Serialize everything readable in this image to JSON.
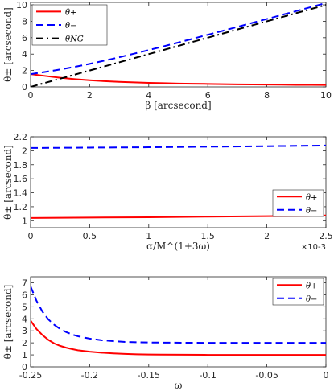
{
  "chart_data": [
    {
      "type": "line",
      "xlabel": "β [arcsecond]",
      "ylabel": "θ± [arcsecond]",
      "xlim": [
        0,
        10
      ],
      "ylim": [
        0,
        10.3
      ],
      "xticks": [
        "0",
        "2",
        "4",
        "6",
        "8",
        "10"
      ],
      "yticks": [
        "0",
        "2",
        "4",
        "6",
        "8",
        "10"
      ],
      "xtick_values": [
        0,
        2,
        4,
        6,
        8,
        10
      ],
      "ytick_values": [
        0,
        2,
        4,
        6,
        8,
        10
      ],
      "legend_position": "top-left",
      "series": [
        {
          "name": "θ+",
          "color": "#ff0000",
          "dash": "solid",
          "x": [
            0,
            0.5,
            1,
            1.5,
            2,
            2.5,
            3,
            3.5,
            4,
            4.5,
            5,
            5.5,
            6,
            6.5,
            7,
            7.5,
            8,
            8.5,
            9,
            9.5,
            10
          ],
          "y": [
            1.56,
            1.33,
            1.12,
            0.95,
            0.81,
            0.7,
            0.61,
            0.55,
            0.49,
            0.45,
            0.41,
            0.38,
            0.36,
            0.33,
            0.31,
            0.3,
            0.28,
            0.27,
            0.25,
            0.24,
            0.23
          ]
        },
        {
          "name": "θ−",
          "color": "#0000ff",
          "dash": "dashed",
          "x": [
            0,
            0.5,
            1,
            1.5,
            2,
            2.5,
            3,
            3.5,
            4,
            4.5,
            5,
            5.5,
            6,
            6.5,
            7,
            7.5,
            8,
            8.5,
            9,
            9.5,
            10
          ],
          "y": [
            1.56,
            1.83,
            2.12,
            2.45,
            2.81,
            3.2,
            3.61,
            4.05,
            4.49,
            4.95,
            5.41,
            5.88,
            6.36,
            6.83,
            7.31,
            7.8,
            8.28,
            8.77,
            9.25,
            9.74,
            10.23
          ]
        },
        {
          "name": "θNG",
          "color": "#000000",
          "dash": "dashdot",
          "x": [
            0,
            1,
            2,
            3,
            4,
            5,
            6,
            7,
            8,
            9,
            10
          ],
          "y": [
            0,
            1.0,
            2.0,
            3.0,
            4.0,
            5.0,
            6.0,
            7.0,
            8.0,
            9.0,
            10.0
          ]
        }
      ]
    },
    {
      "type": "line",
      "xlabel": "α/M^(1+3ω)",
      "ylabel": "θ± [arcsecond]",
      "xlim": [
        0,
        2.5
      ],
      "ylim": [
        0.9,
        2.2
      ],
      "xticks": [
        "0",
        "0.5",
        "1",
        "1.5",
        "2",
        "2.5"
      ],
      "yticks": [
        "1",
        "1.2",
        "1.4",
        "1.6",
        "1.8",
        "2",
        "2.2"
      ],
      "xtick_values": [
        0,
        0.5,
        1,
        1.5,
        2,
        2.5
      ],
      "ytick_values": [
        1,
        1.2,
        1.4,
        1.6,
        1.8,
        2,
        2.2
      ],
      "x_multiplier": "×10-3",
      "legend_position": "right",
      "series": [
        {
          "name": "θ+",
          "color": "#ff0000",
          "dash": "solid",
          "x": [
            0,
            0.5,
            1,
            1.5,
            2,
            2.5
          ],
          "y": [
            1.04,
            1.045,
            1.05,
            1.058,
            1.065,
            1.075
          ]
        },
        {
          "name": "θ−",
          "color": "#0000ff",
          "dash": "dashed",
          "x": [
            0,
            0.5,
            1,
            1.5,
            2,
            2.5
          ],
          "y": [
            2.04,
            2.045,
            2.05,
            2.058,
            2.065,
            2.075
          ]
        }
      ]
    },
    {
      "type": "line",
      "xlabel": "ω",
      "ylabel": "θ± [arcsecond]",
      "xlim": [
        -0.25,
        0
      ],
      "ylim": [
        0,
        7.5
      ],
      "xticks": [
        "-0.25",
        "-0.2",
        "-0.15",
        "-0.1",
        "-0.05",
        "0"
      ],
      "yticks": [
        "0",
        "1",
        "2",
        "3",
        "4",
        "5",
        "6",
        "7"
      ],
      "xtick_values": [
        -0.25,
        -0.2,
        -0.15,
        -0.1,
        -0.05,
        0
      ],
      "ytick_values": [
        0,
        1,
        2,
        3,
        4,
        5,
        6,
        7
      ],
      "legend_position": "top-right",
      "series": [
        {
          "name": "θ+",
          "color": "#ff0000",
          "dash": "solid",
          "x": [
            -0.25,
            -0.245,
            -0.24,
            -0.235,
            -0.23,
            -0.225,
            -0.22,
            -0.215,
            -0.21,
            -0.2,
            -0.19,
            -0.18,
            -0.17,
            -0.16,
            -0.15,
            -0.14,
            -0.12,
            -0.1,
            -0.08,
            -0.05,
            0
          ],
          "y": [
            3.85,
            3.15,
            2.65,
            2.25,
            1.95,
            1.75,
            1.6,
            1.48,
            1.38,
            1.26,
            1.18,
            1.12,
            1.08,
            1.05,
            1.03,
            1.02,
            1.01,
            1.0,
            1.0,
            1.0,
            1.0
          ]
        },
        {
          "name": "θ−",
          "color": "#0000ff",
          "dash": "dashed",
          "x": [
            -0.25,
            -0.245,
            -0.24,
            -0.235,
            -0.23,
            -0.225,
            -0.22,
            -0.215,
            -0.21,
            -0.2,
            -0.19,
            -0.18,
            -0.17,
            -0.16,
            -0.15,
            -0.14,
            -0.12,
            -0.1,
            -0.08,
            -0.05,
            0
          ],
          "y": [
            6.7,
            5.5,
            4.6,
            3.95,
            3.5,
            3.15,
            2.9,
            2.7,
            2.55,
            2.35,
            2.22,
            2.14,
            2.08,
            2.05,
            2.03,
            2.02,
            2.01,
            2.0,
            2.0,
            2.0,
            2.0
          ]
        }
      ]
    }
  ]
}
